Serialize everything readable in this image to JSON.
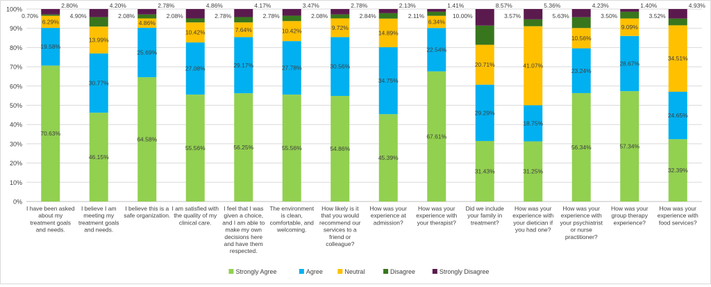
{
  "chart_data": {
    "type": "bar",
    "stacked": true,
    "normalized": true,
    "ylim": [
      0,
      100
    ],
    "y_ticks": [
      "0%",
      "10%",
      "20%",
      "30%",
      "40%",
      "50%",
      "60%",
      "70%",
      "80%",
      "90%",
      "100%"
    ],
    "gridlines": true,
    "legend_position": "bottom",
    "categories": [
      [
        "I have been asked",
        "about my",
        "treatment goals",
        "and needs."
      ],
      [
        "I believe I am",
        "meeting my",
        "treatment goals",
        "and needs."
      ],
      [
        "I believe this is a",
        "safe organization."
      ],
      [
        "I am satisfied with",
        "the quality of my",
        "clinical care."
      ],
      [
        "I feel that I was",
        "given a choice,",
        "and I am able to",
        "make my own",
        "decisions here",
        "and have them",
        "respected."
      ],
      [
        "The environment",
        "is clean,",
        "comfortable, and",
        "welcoming."
      ],
      [
        "How likely is it",
        "that you would",
        "recommend our",
        "services to a",
        "friend or",
        "colleague?"
      ],
      [
        "How was your",
        "experience at",
        "admission?"
      ],
      [
        "How was your",
        "experience with",
        "your therapist?"
      ],
      [
        "Did we include",
        "your family in",
        "treatment?"
      ],
      [
        "How was your",
        "experience with",
        "your dietician if",
        "you had one?"
      ],
      [
        "How was your",
        "experience with",
        "your psychiatrist",
        "or nurse",
        "practitioner?"
      ],
      [
        "How was your",
        "group therapy",
        "experience?"
      ],
      [
        "How was your",
        "experience with",
        "food services?"
      ]
    ],
    "series": [
      {
        "name": "Strongly Agree",
        "color": "#92d050",
        "values": [
          70.63,
          46.15,
          64.58,
          55.56,
          56.25,
          55.56,
          54.86,
          45.39,
          67.61,
          31.43,
          31.25,
          56.34,
          57.34,
          32.39
        ]
      },
      {
        "name": "Agree",
        "color": "#00b0f0",
        "values": [
          19.58,
          30.77,
          25.69,
          27.08,
          29.17,
          27.78,
          30.56,
          34.75,
          22.54,
          29.29,
          18.75,
          23.24,
          28.67,
          24.65
        ]
      },
      {
        "name": "Neutral",
        "color": "#ffc000",
        "values": [
          6.29,
          13.99,
          4.86,
          10.42,
          7.64,
          10.42,
          9.72,
          14.89,
          6.34,
          20.71,
          41.07,
          10.56,
          9.09,
          34.51
        ]
      },
      {
        "name": "Disagree",
        "color": "#38761d",
        "values": [
          0.7,
          4.9,
          2.08,
          2.08,
          2.78,
          2.78,
          2.08,
          2.84,
          2.11,
          10.0,
          3.57,
          5.63,
          3.5,
          3.52
        ]
      },
      {
        "name": "Strongly Disagree",
        "color": "#5b1a4e",
        "values": [
          2.8,
          4.2,
          2.78,
          4.86,
          4.17,
          3.47,
          2.78,
          2.13,
          1.41,
          8.57,
          5.36,
          4.23,
          1.4,
          4.93
        ]
      }
    ]
  }
}
